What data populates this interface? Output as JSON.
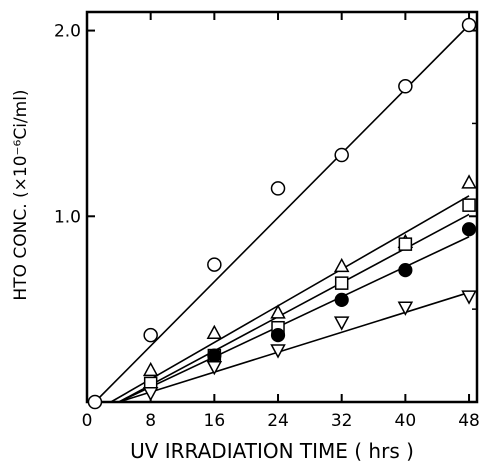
{
  "chart_data": {
    "type": "scatter",
    "title": "",
    "xlabel": "UV IRRADIATION TIME ( hrs )",
    "ylabel": "HTO CONC. (×10⁻⁶Ci/ml)",
    "xlim": [
      0,
      49
    ],
    "ylim": [
      0,
      2.1
    ],
    "xticks": [
      0,
      8,
      16,
      24,
      32,
      40,
      48
    ],
    "xtick_labels": [
      "0",
      "8",
      "16",
      "24",
      "32",
      "40",
      "48"
    ],
    "yticks": [
      1.0,
      2.0
    ],
    "ytick_labels": [
      "1.0",
      "2.0"
    ],
    "grid": false,
    "legend": "none",
    "series": [
      {
        "marker": "open-circle",
        "points": [
          [
            1,
            0.0
          ],
          [
            8,
            0.36
          ],
          [
            16,
            0.74
          ],
          [
            24,
            1.15
          ],
          [
            32,
            1.33
          ],
          [
            40,
            1.7
          ],
          [
            48,
            2.03
          ]
        ],
        "fit": [
          [
            1,
            0.0
          ],
          [
            48,
            2.03
          ]
        ]
      },
      {
        "marker": "open-triangle-up",
        "points": [
          [
            8,
            0.17
          ],
          [
            16,
            0.37
          ],
          [
            24,
            0.48
          ],
          [
            32,
            0.73
          ],
          [
            40,
            0.86
          ],
          [
            48,
            1.18
          ]
        ],
        "fit": [
          [
            3,
            0.0
          ],
          [
            48,
            1.11
          ]
        ]
      },
      {
        "marker": "open-square",
        "points": [
          [
            8,
            0.1
          ],
          [
            16,
            0.25
          ],
          [
            24,
            0.4
          ],
          [
            32,
            0.64
          ],
          [
            40,
            0.85
          ],
          [
            48,
            1.06
          ]
        ],
        "fit": [
          [
            4,
            0.0
          ],
          [
            48,
            1.01
          ]
        ]
      },
      {
        "marker": "filled-circle",
        "points": [
          [
            16,
            0.25
          ],
          [
            24,
            0.36
          ],
          [
            32,
            0.55
          ],
          [
            40,
            0.71
          ],
          [
            48,
            0.93
          ]
        ],
        "fit": [
          [
            4,
            0.0
          ],
          [
            48,
            0.89
          ]
        ]
      },
      {
        "marker": "open-triangle-down",
        "points": [
          [
            8,
            0.05
          ],
          [
            16,
            0.19
          ],
          [
            24,
            0.28
          ],
          [
            32,
            0.43
          ],
          [
            40,
            0.51
          ],
          [
            48,
            0.57
          ]
        ],
        "fit": [
          [
            4,
            0.0
          ],
          [
            48,
            0.59
          ]
        ]
      }
    ]
  }
}
